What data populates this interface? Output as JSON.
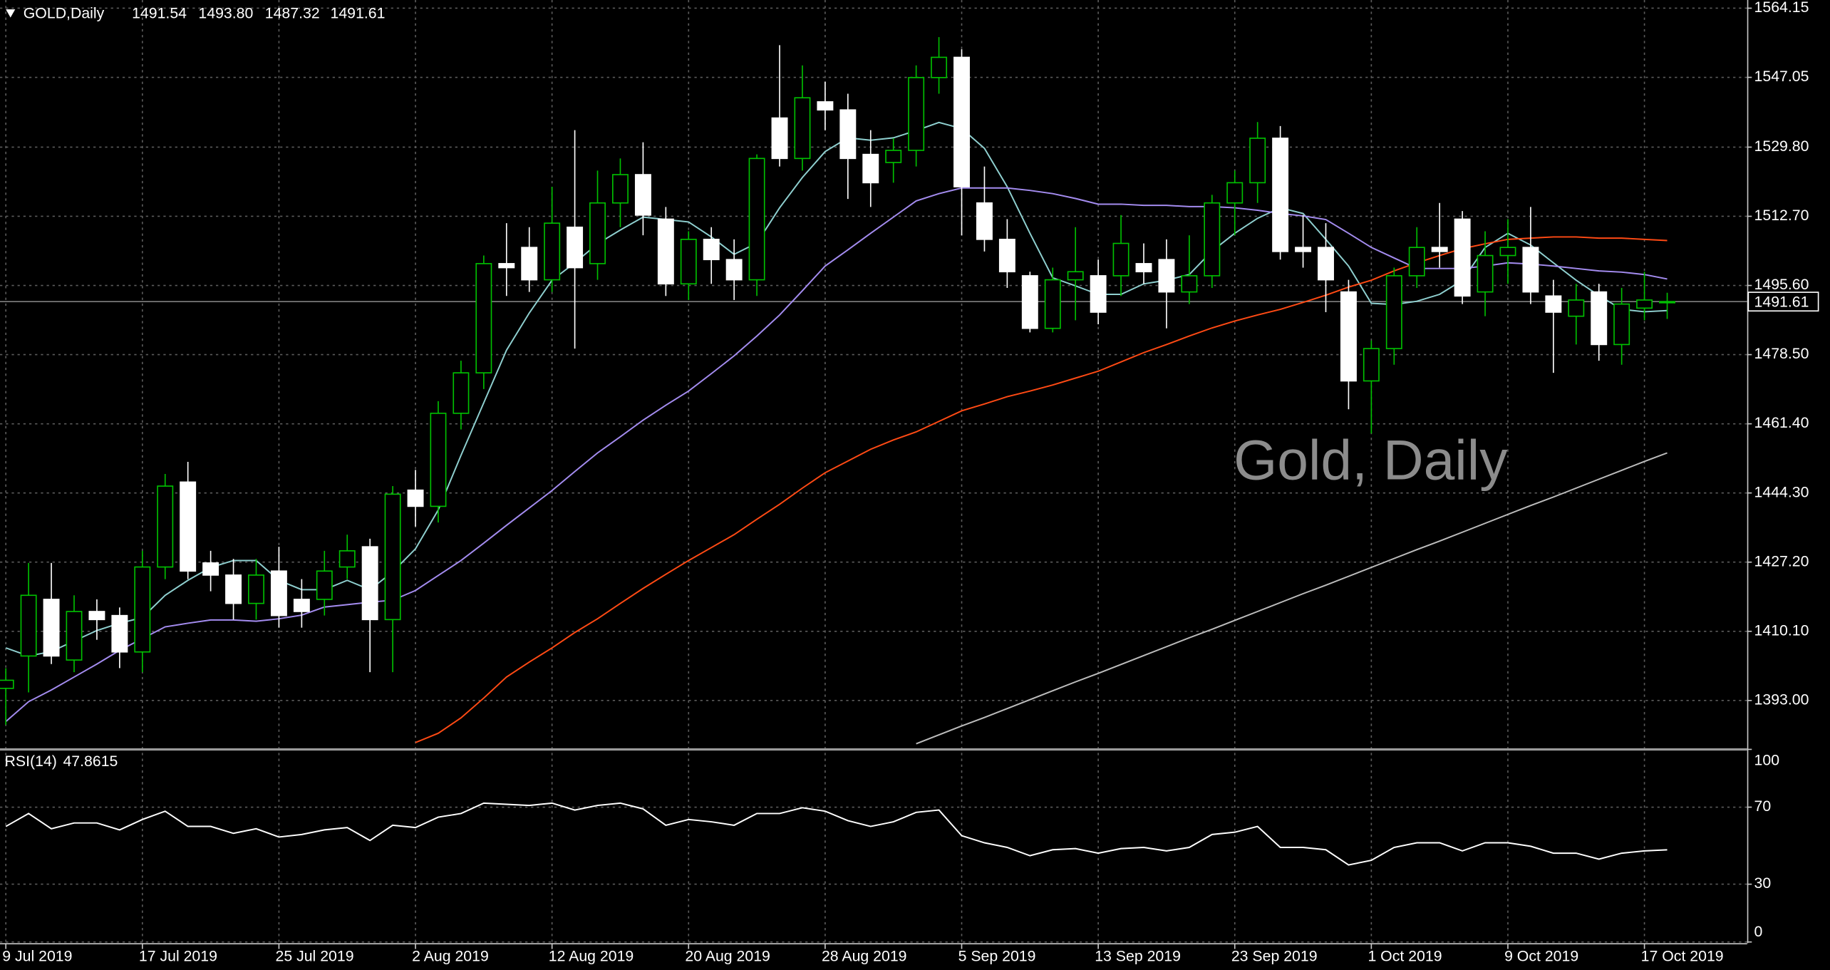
{
  "chart_data": {
    "type": "candlestick",
    "title": "GOLD,Daily",
    "ohlc_labels": [
      "1491.54",
      "1493.80",
      "1487.32",
      "1491.61"
    ],
    "watermark": "Gold, Daily",
    "categories": [
      "9 Jul 2019",
      null,
      null,
      null,
      null,
      null,
      "17 Jul 2019",
      null,
      null,
      null,
      null,
      null,
      "25 Jul 2019",
      null,
      null,
      null,
      null,
      null,
      "2 Aug 2019",
      null,
      null,
      null,
      null,
      null,
      "12 Aug 2019",
      null,
      null,
      null,
      null,
      null,
      "20 Aug 2019",
      null,
      null,
      null,
      null,
      null,
      "28 Aug 2019",
      null,
      null,
      null,
      null,
      null,
      "5 Sep 2019",
      null,
      null,
      null,
      null,
      null,
      "13 Sep 2019",
      null,
      null,
      null,
      null,
      null,
      "23 Sep 2019",
      null,
      null,
      null,
      null,
      null,
      "1 Oct 2019",
      null,
      null,
      null,
      null,
      null,
      "9 Oct 2019",
      null,
      null,
      null,
      null,
      null,
      "17 Oct 2019",
      null
    ],
    "open": [
      1396,
      1404,
      1418,
      1403,
      1415,
      1414,
      1405,
      1426,
      1447,
      1427,
      1424,
      1417,
      1425,
      1418,
      1418,
      1426,
      1431,
      1413,
      1445,
      1441,
      1464,
      1474,
      1501,
      1505,
      1497,
      1510,
      1501,
      1516,
      1523,
      1512,
      1496,
      1507,
      1502,
      1497,
      1537,
      1527,
      1541,
      1539,
      1528,
      1526,
      1529,
      1547,
      1552,
      1516,
      1507,
      1498,
      1485,
      1497,
      1498,
      1498,
      1501,
      1502,
      1494,
      1498,
      1516,
      1521,
      1532,
      1505,
      1505,
      1494,
      1472,
      1480,
      1498,
      1505,
      1512,
      1494,
      1503,
      1505,
      1493,
      1488,
      1494,
      1481,
      1490,
      1491.54
    ],
    "high": [
      1401,
      1427,
      1427,
      1419,
      1418,
      1416,
      1430,
      1449,
      1452,
      1430,
      1428,
      1428,
      1431,
      1423,
      1430,
      1434,
      1433,
      1446,
      1450,
      1467,
      1477,
      1503,
      1511,
      1510,
      1520,
      1534,
      1524,
      1527,
      1531,
      1515,
      1509,
      1510,
      1507,
      1528,
      1555,
      1550,
      1546,
      1543,
      1534,
      1532,
      1550,
      1557,
      1554,
      1525,
      1512,
      1499,
      1500,
      1510,
      1502,
      1513,
      1506,
      1507,
      1508,
      1518,
      1524,
      1536,
      1535,
      1513,
      1511,
      1497,
      1482,
      1500,
      1510,
      1516,
      1514,
      1509,
      1512,
      1515,
      1497,
      1496,
      1496,
      1495,
      1499,
      1493.8
    ],
    "low": [
      1387,
      1395,
      1402,
      1400,
      1408,
      1401,
      1400,
      1423,
      1423,
      1420,
      1413,
      1413,
      1411,
      1411,
      1414,
      1423,
      1400,
      1400,
      1436,
      1437,
      1460,
      1470,
      1493,
      1494,
      1494,
      1480,
      1497,
      1510,
      1508,
      1493,
      1492,
      1496,
      1492,
      1493,
      1525,
      1524,
      1534,
      1517,
      1515,
      1521,
      1525,
      1543,
      1508,
      1504,
      1495,
      1484,
      1484,
      1487,
      1486,
      1493,
      1496,
      1485,
      1491,
      1495,
      1508,
      1516,
      1502,
      1500,
      1489,
      1465,
      1459,
      1476,
      1495,
      1500,
      1491,
      1488,
      1496,
      1491,
      1474,
      1481,
      1477,
      1476,
      1487,
      1487.32
    ],
    "close": [
      1398,
      1419,
      1404,
      1415,
      1413,
      1405,
      1426,
      1446,
      1425,
      1424,
      1417,
      1424,
      1414,
      1415,
      1425,
      1430,
      1413,
      1444,
      1441,
      1464,
      1474,
      1501,
      1500,
      1497,
      1511,
      1500,
      1516,
      1523,
      1513,
      1496,
      1507,
      1502,
      1497,
      1527,
      1527,
      1542,
      1539,
      1527,
      1521,
      1529,
      1547,
      1552,
      1520,
      1507,
      1499,
      1485,
      1497,
      1499,
      1489,
      1506,
      1499,
      1494,
      1498,
      1516,
      1521,
      1532,
      1504,
      1504,
      1497,
      1472,
      1480,
      1498,
      1505,
      1504,
      1493,
      1503,
      1505,
      1494,
      1489,
      1492,
      1481,
      1491,
      1492,
      1491.61
    ],
    "up_color": "#00c000",
    "up_fill": "#000000",
    "down_color": "#ffffff",
    "price_line_color": "#808080",
    "overlays": [
      {
        "color": "#8fd0d0",
        "values": [
          1406.0,
          1404.0,
          1405.1,
          1407.7,
          1410.3,
          1412.1,
          1413.5,
          1419.0,
          1422.7,
          1425.9,
          1427.6,
          1427.6,
          1422.7,
          1420.4,
          1420.4,
          1422.7,
          1420.4,
          1424.8,
          1430.5,
          1440.1,
          1453.6,
          1466.6,
          1479.6,
          1488.8,
          1496.9,
          1501.2,
          1505.9,
          1509.3,
          1512.5,
          1511.9,
          1511.3,
          1507.6,
          1503.3,
          1506.1,
          1514.8,
          1522.3,
          1528.7,
          1532.1,
          1531.5,
          1532.1,
          1533.9,
          1535.9,
          1534.4,
          1529.5,
          1520.0,
          1508.5,
          1497.5,
          1495.5,
          1493.4,
          1493.4,
          1496.0,
          1496.9,
          1498.3,
          1504.1,
          1508.5,
          1512.2,
          1514.8,
          1513.4,
          1507.0,
          1500.4,
          1491.2,
          1490.9,
          1491.7,
          1493.4,
          1496.9,
          1505.0,
          1508.5,
          1505.6,
          1501.2,
          1496.9,
          1493.1,
          1489.7,
          1489.1,
          1489.4
        ]
      },
      {
        "color": "#a48cf0",
        "values": [
          1387.8,
          1392.7,
          1395.6,
          1398.8,
          1402.0,
          1405.4,
          1408.3,
          1411.2,
          1412.1,
          1412.9,
          1412.9,
          1412.6,
          1413.2,
          1414.1,
          1416.1,
          1416.7,
          1417.3,
          1417.8,
          1420.2,
          1423.9,
          1427.6,
          1431.9,
          1436.3,
          1440.6,
          1444.9,
          1449.6,
          1454.2,
          1458.2,
          1462.3,
          1466.0,
          1469.5,
          1473.8,
          1478.2,
          1483.1,
          1488.3,
          1494.3,
          1500.4,
          1504.4,
          1508.5,
          1512.5,
          1516.5,
          1518.3,
          1519.7,
          1519.7,
          1519.7,
          1519.1,
          1518.3,
          1517.1,
          1515.7,
          1515.7,
          1515.4,
          1515.4,
          1515.1,
          1515.1,
          1514.8,
          1514.2,
          1513.4,
          1512.8,
          1511.9,
          1508.5,
          1505.0,
          1502.4,
          1499.8,
          1499.8,
          1499.8,
          1500.4,
          1501.2,
          1500.9,
          1500.4,
          1499.8,
          1499.2,
          1498.9,
          1498.3,
          1497.2
        ]
      },
      {
        "color": "#ff4a14",
        "values": [
          null,
          null,
          null,
          null,
          null,
          null,
          null,
          null,
          null,
          null,
          null,
          null,
          null,
          null,
          null,
          null,
          null,
          null,
          1382.6,
          1384.9,
          1388.7,
          1393.6,
          1398.8,
          1402.5,
          1406.0,
          1409.8,
          1413.2,
          1417.0,
          1420.7,
          1424.2,
          1427.6,
          1430.8,
          1434.0,
          1437.8,
          1441.5,
          1445.5,
          1449.3,
          1452.2,
          1455.1,
          1457.4,
          1459.4,
          1462.0,
          1464.6,
          1466.3,
          1468.1,
          1469.5,
          1471.0,
          1472.7,
          1474.4,
          1476.7,
          1479.0,
          1481.0,
          1483.1,
          1485.1,
          1486.8,
          1488.3,
          1489.7,
          1491.4,
          1493.2,
          1495.2,
          1496.9,
          1499.2,
          1501.2,
          1503.0,
          1504.7,
          1505.9,
          1507.0,
          1507.3,
          1507.6,
          1507.6,
          1507.3,
          1507.3,
          1507.0,
          1506.7
        ]
      },
      {
        "color": "#bdbdbd",
        "values": [
          null,
          null,
          null,
          null,
          null,
          null,
          null,
          null,
          null,
          null,
          null,
          null,
          null,
          null,
          null,
          null,
          null,
          null,
          null,
          null,
          null,
          null,
          null,
          null,
          null,
          null,
          null,
          null,
          null,
          null,
          null,
          null,
          null,
          null,
          null,
          null,
          null,
          null,
          null,
          null,
          1382.3,
          1384.5,
          1386.7,
          1388.8,
          1391.0,
          1393.2,
          1395.4,
          1397.6,
          1399.7,
          1401.9,
          1404.1,
          1406.3,
          1408.5,
          1410.6,
          1412.8,
          1415.0,
          1417.2,
          1419.4,
          1421.5,
          1423.7,
          1425.9,
          1428.1,
          1430.3,
          1432.4,
          1434.6,
          1436.8,
          1439.0,
          1441.2,
          1443.3,
          1445.5,
          1447.7,
          1449.9,
          1452.1,
          1454.2
        ]
      }
    ],
    "ylim": [
      1381.2,
      1566.17
    ],
    "yticks": [
      1564.15,
      1547.05,
      {
        "value": 1529.8,
        "label": "1529.80"
      },
      {
        "value": 1512.7,
        "label": "1512.70"
      },
      {
        "value": 1495.6,
        "label": "1495.60"
      },
      {
        "value": 1478.5,
        "label": "1478.50"
      },
      {
        "value": 1461.4,
        "label": "1461.40"
      },
      {
        "value": 1444.3,
        "label": "1444.30"
      },
      {
        "value": 1427.2,
        "label": "1427.20"
      },
      {
        "value": 1410.1,
        "label": "1410.10"
      },
      {
        "value": 1393.0,
        "label": "1393.00"
      }
    ],
    "grid": true,
    "indicator": {
      "label": "RSI(14)",
      "color": "#ffffff",
      "values": [
        60.0,
        66.7,
        58.8,
        61.8,
        61.8,
        58.2,
        63.6,
        67.9,
        60.0,
        60.0,
        56.4,
        58.8,
        54.5,
        55.8,
        58.2,
        59.4,
        52.7,
        60.6,
        59.4,
        64.8,
        66.7,
        72.1,
        71.5,
        70.9,
        72.1,
        68.5,
        70.9,
        72.1,
        69.1,
        60.6,
        63.6,
        62.4,
        60.6,
        66.7,
        66.7,
        69.7,
        67.9,
        63.0,
        60.0,
        62.4,
        67.3,
        68.5,
        55.2,
        51.5,
        49.1,
        44.8,
        47.9,
        48.5,
        46.1,
        48.5,
        49.1,
        47.3,
        49.1,
        55.8,
        57.0,
        60.0,
        49.1,
        49.1,
        47.9,
        40.0,
        42.4,
        49.1,
        51.5,
        51.5,
        47.3,
        51.5,
        51.5,
        49.7,
        46.1,
        46.1,
        43.0,
        46.1,
        47.3,
        47.8615
      ],
      "ylim": [
        0,
        100
      ],
      "yticks": [
        100,
        70,
        30,
        0
      ]
    }
  }
}
